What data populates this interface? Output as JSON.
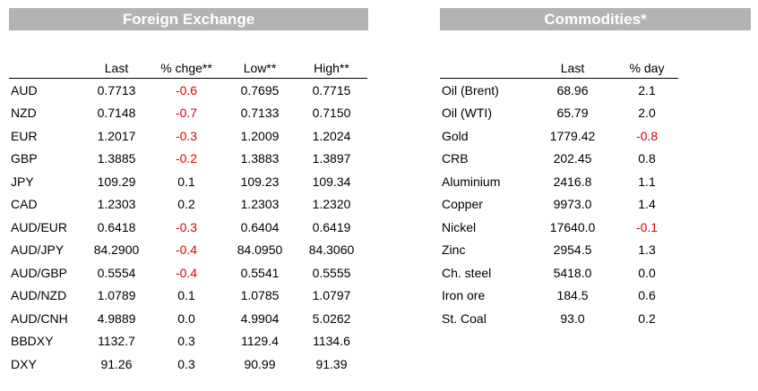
{
  "fx": {
    "title": "Foreign Exchange",
    "columns": [
      "",
      "Last",
      "% chge**",
      "Low**",
      "High**"
    ],
    "rows": [
      {
        "name": "AUD",
        "last": "0.7713",
        "chg": "-0.6",
        "low": "0.7695",
        "high": "0.7715"
      },
      {
        "name": "NZD",
        "last": "0.7148",
        "chg": "-0.7",
        "low": "0.7133",
        "high": "0.7150"
      },
      {
        "name": "EUR",
        "last": "1.2017",
        "chg": "-0.3",
        "low": "1.2009",
        "high": "1.2024"
      },
      {
        "name": "GBP",
        "last": "1.3885",
        "chg": "-0.2",
        "low": "1.3883",
        "high": "1.3897"
      },
      {
        "name": "JPY",
        "last": "109.29",
        "chg": "0.1",
        "low": "109.23",
        "high": "109.34"
      },
      {
        "name": "CAD",
        "last": "1.2303",
        "chg": "0.2",
        "low": "1.2303",
        "high": "1.2320"
      },
      {
        "name": "AUD/EUR",
        "last": "0.6418",
        "chg": "-0.3",
        "low": "0.6404",
        "high": "0.6419"
      },
      {
        "name": "AUD/JPY",
        "last": "84.2900",
        "chg": "-0.4",
        "low": "84.0950",
        "high": "84.3060"
      },
      {
        "name": "AUD/GBP",
        "last": "0.5554",
        "chg": "-0.4",
        "low": "0.5541",
        "high": "0.5555"
      },
      {
        "name": "AUD/NZD",
        "last": "1.0789",
        "chg": "0.1",
        "low": "1.0785",
        "high": "1.0797"
      },
      {
        "name": "AUD/CNH",
        "last": "4.9889",
        "chg": "0.0",
        "low": "4.9904",
        "high": "5.0262"
      },
      {
        "name": "BBDXY",
        "last": "1132.7",
        "chg": "0.3",
        "low": "1129.4",
        "high": "1134.6"
      },
      {
        "name": "DXY",
        "last": "91.26",
        "chg": "0.3",
        "low": "90.99",
        "high": "91.39"
      }
    ]
  },
  "commodities": {
    "title": "Commodities*",
    "columns": [
      "",
      "Last",
      "% day"
    ],
    "rows": [
      {
        "name": "Oil (Brent)",
        "last": "68.96",
        "day": "2.1"
      },
      {
        "name": "Oil (WTI)",
        "last": "65.79",
        "day": "2.0"
      },
      {
        "name": "Gold",
        "last": "1779.42",
        "day": "-0.8"
      },
      {
        "name": "CRB",
        "last": "202.45",
        "day": "0.8"
      },
      {
        "name": "Aluminium",
        "last": "2416.8",
        "day": "1.1"
      },
      {
        "name": "Copper",
        "last": "9973.0",
        "day": "1.4"
      },
      {
        "name": "Nickel",
        "last": "17640.0",
        "day": "-0.1"
      },
      {
        "name": "Zinc",
        "last": "2954.5",
        "day": "1.3"
      },
      {
        "name": "Ch. steel",
        "last": "5418.0",
        "day": "0.0"
      },
      {
        "name": "Iron ore",
        "last": "184.5",
        "day": "0.6"
      },
      {
        "name": "St. Coal",
        "last": "93.0",
        "day": "0.2"
      }
    ]
  },
  "colors": {
    "banner_bg": "#b3b3b3",
    "banner_text": "#ffffff",
    "negative": "#e00000"
  }
}
